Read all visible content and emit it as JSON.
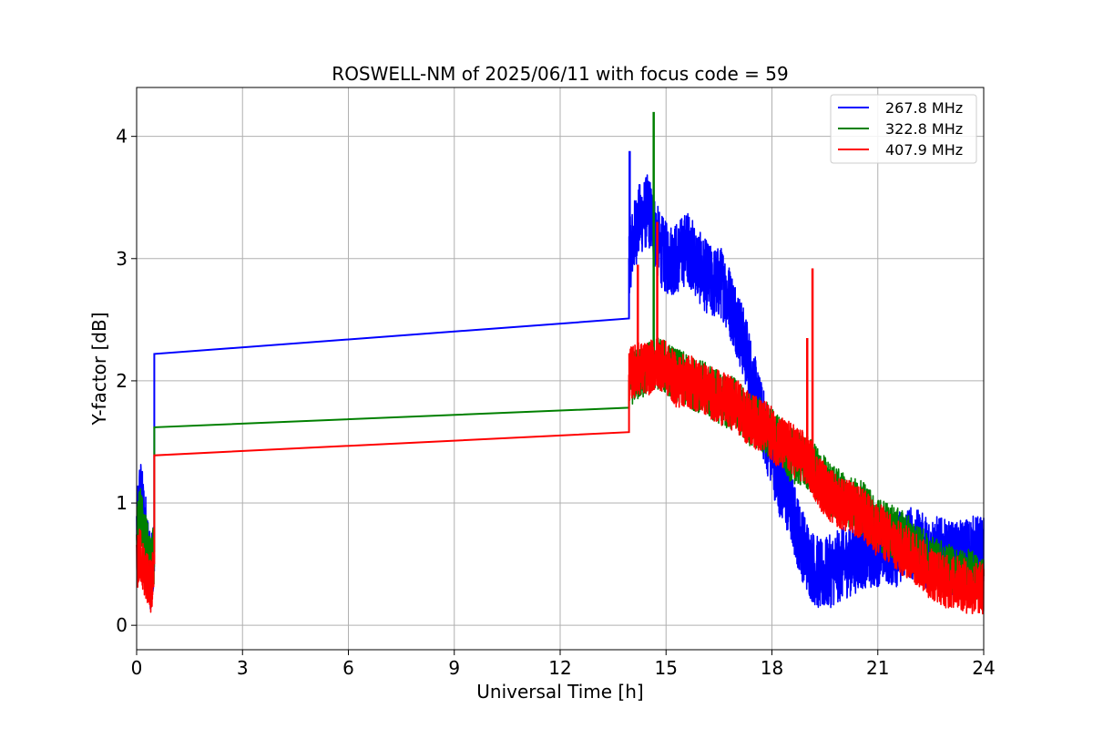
{
  "chart_data": {
    "type": "line",
    "title": "ROSWELL-NM of 2025/06/11 with focus code = 59",
    "xlabel": "Universal Time [h]",
    "ylabel": "Y-factor [dB]",
    "xlim": [
      0,
      24
    ],
    "ylim": [
      -0.2,
      4.4
    ],
    "xticks": [
      0,
      3,
      6,
      9,
      12,
      15,
      18,
      21,
      24
    ],
    "yticks": [
      0,
      1,
      2,
      3,
      4
    ],
    "grid": true,
    "legend_position": "top-right",
    "series": [
      {
        "name": "267.8 MHz",
        "color": "#0000ff",
        "noise_segments": [
          {
            "x": [
              0.0,
              0.1,
              0.2,
              0.3,
              0.4,
              0.5
            ],
            "y": [
              0.8,
              1.1,
              0.9,
              0.7,
              0.4,
              0.6
            ],
            "amp": 0.3
          },
          {
            "x": [
              13.95,
              14.2,
              14.5,
              14.8,
              15.0,
              15.3,
              15.6,
              16.0,
              16.3,
              16.6,
              17.0,
              17.3,
              17.6,
              17.9,
              18.2,
              18.5,
              18.8,
              19.1,
              19.4,
              19.7,
              20.0,
              20.3,
              20.6,
              20.9,
              21.2,
              21.5,
              21.8,
              22.1,
              22.4,
              22.7,
              23.0,
              23.3,
              23.6,
              24.0
            ],
            "y": [
              3.0,
              3.3,
              3.4,
              3.1,
              3.0,
              3.0,
              3.1,
              2.9,
              2.8,
              2.8,
              2.5,
              2.2,
              1.8,
              1.5,
              1.2,
              1.0,
              0.7,
              0.5,
              0.4,
              0.45,
              0.5,
              0.55,
              0.6,
              0.6,
              0.65,
              0.6,
              0.7,
              0.65,
              0.6,
              0.6,
              0.55,
              0.55,
              0.6,
              0.6
            ],
            "amp": 0.3
          }
        ],
        "lines": [
          {
            "x": [
              0.5,
              0.5,
              13.95,
              13.95
            ],
            "y": [
              0.6,
              2.22,
              2.51,
              3.0
            ]
          }
        ],
        "spikes": [
          {
            "x": 13.97,
            "y": 3.88
          }
        ]
      },
      {
        "name": "322.8 MHz",
        "color": "#008000",
        "noise_segments": [
          {
            "x": [
              0.0,
              0.1,
              0.2,
              0.3,
              0.4,
              0.5
            ],
            "y": [
              0.7,
              0.9,
              0.75,
              0.6,
              0.45,
              0.6
            ],
            "amp": 0.25
          },
          {
            "x": [
              13.95,
              14.2,
              14.5,
              14.8,
              15.0,
              15.3,
              15.6,
              16.0,
              16.3,
              16.6,
              17.0,
              17.3,
              17.6,
              17.9,
              18.2,
              18.5,
              18.8,
              19.1,
              19.4,
              19.7,
              20.0,
              20.3,
              20.6,
              20.9,
              21.2,
              21.5,
              21.8,
              22.1,
              22.4,
              22.7,
              23.0,
              23.3,
              23.6,
              24.0
            ],
            "y": [
              2.0,
              2.05,
              2.1,
              2.15,
              2.1,
              2.05,
              2.0,
              1.95,
              1.9,
              1.85,
              1.8,
              1.7,
              1.65,
              1.6,
              1.5,
              1.4,
              1.35,
              1.3,
              1.2,
              1.1,
              1.05,
              1.0,
              0.95,
              0.85,
              0.8,
              0.75,
              0.7,
              0.6,
              0.55,
              0.5,
              0.45,
              0.4,
              0.4,
              0.35
            ],
            "amp": 0.22
          }
        ],
        "lines": [
          {
            "x": [
              0.5,
              0.5,
              13.95,
              13.95
            ],
            "y": [
              0.6,
              1.62,
              1.78,
              2.0
            ]
          }
        ],
        "spikes": [
          {
            "x": 14.65,
            "y": 4.2
          }
        ]
      },
      {
        "name": "407.9 MHz",
        "color": "#ff0000",
        "noise_segments": [
          {
            "x": [
              0.0,
              0.1,
              0.2,
              0.3,
              0.4,
              0.5
            ],
            "y": [
              0.5,
              0.6,
              0.45,
              0.4,
              0.3,
              0.5
            ],
            "amp": 0.22
          },
          {
            "x": [
              13.95,
              14.2,
              14.5,
              14.8,
              15.0,
              15.3,
              15.6,
              16.0,
              16.3,
              16.6,
              17.0,
              17.3,
              17.6,
              17.9,
              18.2,
              18.5,
              18.8,
              19.1,
              19.4,
              19.7,
              20.0,
              20.3,
              20.6,
              20.9,
              21.2,
              21.5,
              21.8,
              22.1,
              22.4,
              22.7,
              23.0,
              23.3,
              23.6,
              24.0
            ],
            "y": [
              2.05,
              2.1,
              2.1,
              2.15,
              2.1,
              2.0,
              2.0,
              1.95,
              1.9,
              1.85,
              1.8,
              1.7,
              1.65,
              1.6,
              1.5,
              1.45,
              1.4,
              1.3,
              1.15,
              1.05,
              1.0,
              0.95,
              0.9,
              0.8,
              0.75,
              0.65,
              0.6,
              0.55,
              0.45,
              0.4,
              0.35,
              0.35,
              0.3,
              0.3
            ],
            "amp": 0.22
          }
        ],
        "lines": [
          {
            "x": [
              0.5,
              0.5,
              13.95,
              13.95
            ],
            "y": [
              0.5,
              1.39,
              1.58,
              2.05
            ]
          }
        ],
        "spikes": [
          {
            "x": 14.2,
            "y": 2.95
          },
          {
            "x": 14.75,
            "y": 3.3
          },
          {
            "x": 19.0,
            "y": 2.35
          },
          {
            "x": 19.15,
            "y": 2.92
          }
        ]
      }
    ]
  }
}
